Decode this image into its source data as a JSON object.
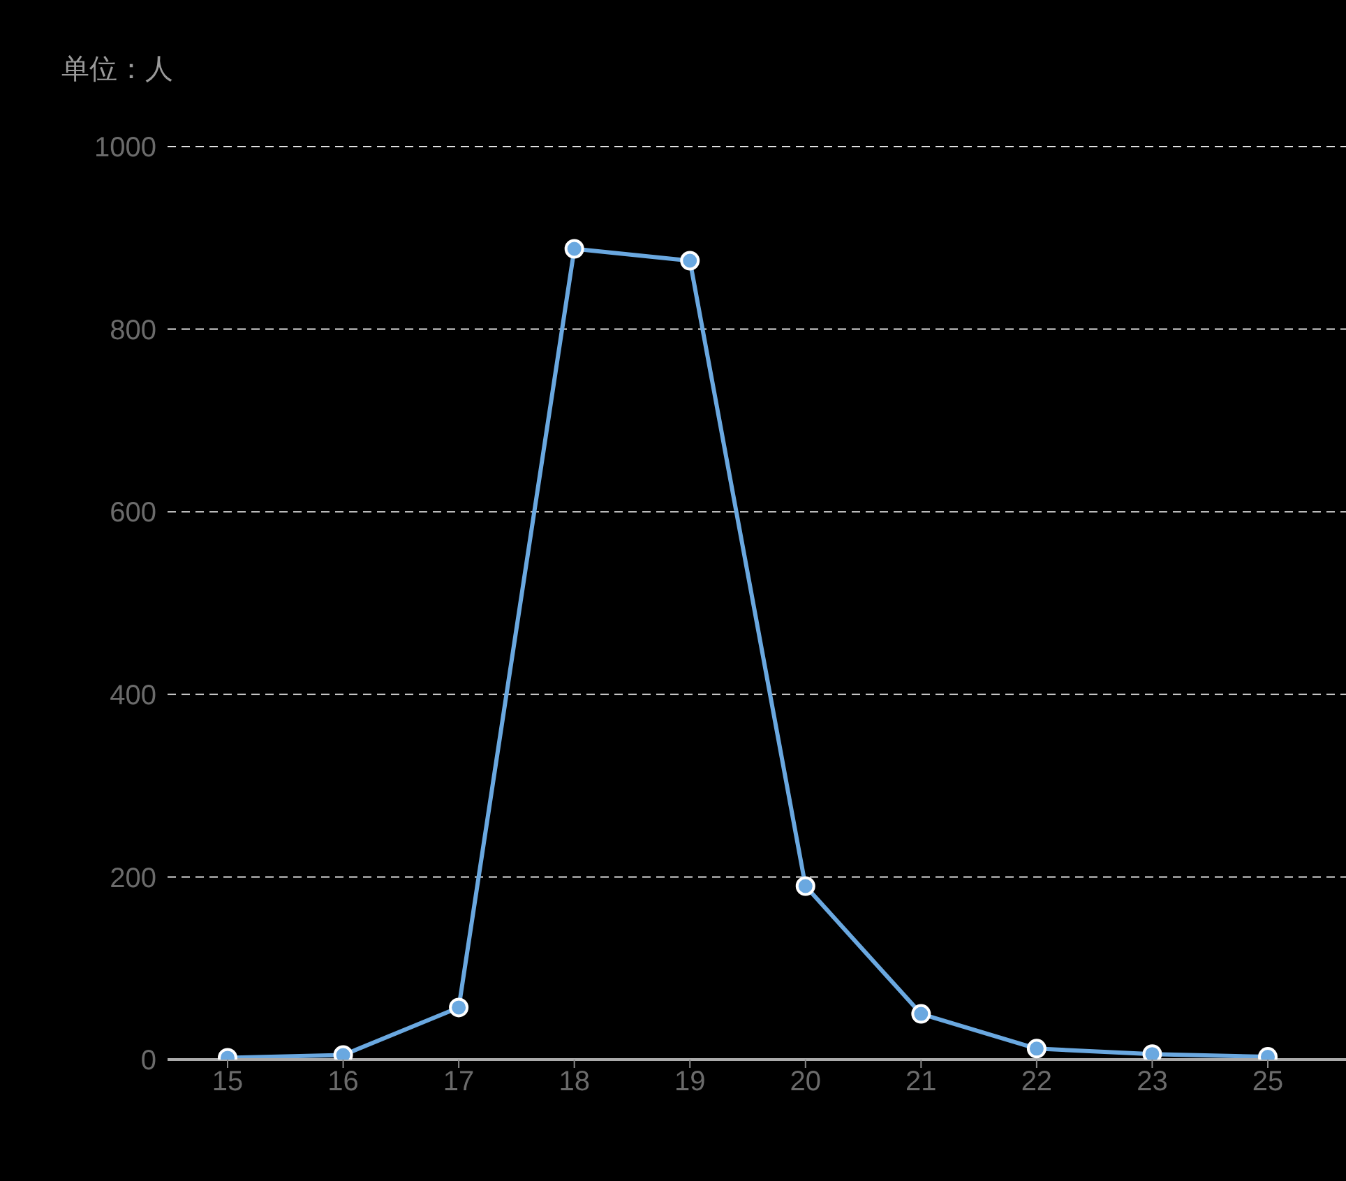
{
  "chart_data": {
    "type": "line",
    "ylabel": "单位：人",
    "categories": [
      "15",
      "16",
      "17",
      "18",
      "19",
      "20",
      "21",
      "22",
      "23",
      "25"
    ],
    "series": [
      {
        "color": "#6aa8e0",
        "values": [
          2,
          5,
          57,
          888,
          875,
          190,
          50,
          12,
          6,
          3
        ]
      }
    ],
    "ylim": [
      0,
      1000
    ],
    "yticks": [
      0,
      200,
      400,
      600,
      800,
      1000
    ],
    "grid": "y",
    "marker": "circle",
    "line_style": "solid"
  }
}
